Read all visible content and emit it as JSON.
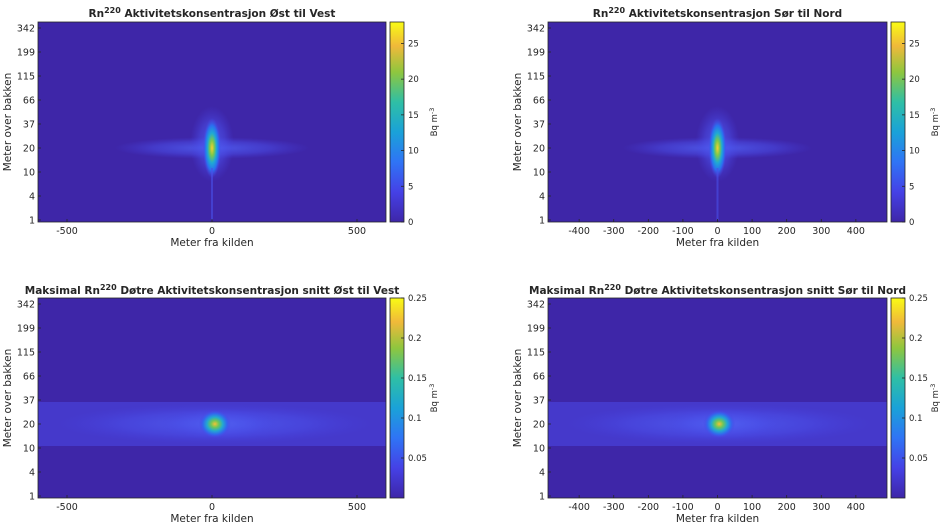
{
  "chart_data": [
    {
      "type": "heatmap",
      "title": {
        "base": "Rn",
        "sup": "220",
        "rest": " Aktivitetskonsentrasjon Øst til Vest"
      },
      "xlabel": "Meter fra kilden",
      "ylabel": "Meter over bakken",
      "x_ticks": [
        -500,
        0,
        500
      ],
      "y_ticks": [
        1,
        4,
        10,
        20,
        37,
        66,
        115,
        199,
        342
      ],
      "xlim": [
        -600,
        600
      ],
      "colorbar": {
        "label_base": "Bq m",
        "label_sup": "-3",
        "ticks": [
          0,
          5,
          10,
          15,
          20,
          25
        ],
        "min": 0,
        "max": 28
      },
      "peak": {
        "x": 0,
        "y": 20,
        "value": 27
      },
      "colors": {
        "background": "#3e26a8",
        "low": "#4a3fe0",
        "mid": "#2fb7c9",
        "high": "#fcd52f"
      }
    },
    {
      "type": "heatmap",
      "title": {
        "base": "Rn",
        "sup": "220",
        "rest": " Aktivitetskonsentrasjon Sør til Nord"
      },
      "xlabel": "Meter fra kilden",
      "ylabel": "Meter over bakken",
      "x_ticks": [
        -400,
        -300,
        -200,
        -100,
        0,
        100,
        200,
        300,
        400
      ],
      "y_ticks": [
        1,
        4,
        10,
        20,
        37,
        66,
        115,
        199,
        342
      ],
      "xlim": [
        -490,
        490
      ],
      "colorbar": {
        "label_base": "Bq m",
        "label_sup": "-3",
        "ticks": [
          0,
          5,
          10,
          15,
          20,
          25
        ],
        "min": 0,
        "max": 28
      },
      "peak": {
        "x": 0,
        "y": 20,
        "value": 27
      },
      "colors": {
        "background": "#3e26a8",
        "low": "#4a3fe0",
        "mid": "#2fb7c9",
        "high": "#fcd52f"
      }
    },
    {
      "type": "heatmap",
      "title": {
        "base": "Maksimal Rn",
        "sup": "220",
        "rest": " Døtre Aktivitetskonsentrasjon snitt Øst til Vest"
      },
      "xlabel": "Meter fra kilden",
      "ylabel": "Meter over bakken",
      "x_ticks": [
        -500,
        0,
        500
      ],
      "y_ticks": [
        1,
        4,
        10,
        20,
        37,
        66,
        115,
        199,
        342
      ],
      "xlim": [
        -600,
        600
      ],
      "colorbar": {
        "label_base": "Bq m",
        "label_sup": "-3",
        "ticks": [
          0.05,
          0.1,
          0.15,
          0.2,
          0.25
        ],
        "min": 0,
        "max": 0.25
      },
      "peak": {
        "x": 10,
        "y": 20,
        "value": 0.22
      },
      "colors": {
        "background": "#3e26a8",
        "low": "#4a3fe0",
        "mid": "#2fb7c9",
        "high": "#fcd52f"
      }
    },
    {
      "type": "heatmap",
      "title": {
        "base": "Maksimal Rn",
        "sup": "220",
        "rest": " Døtre Aktivitetskonsentrasjon snitt Sør til Nord"
      },
      "xlabel": "Meter fra kilden",
      "ylabel": "Meter over bakken",
      "x_ticks": [
        -400,
        -300,
        -200,
        -100,
        0,
        100,
        200,
        300,
        400
      ],
      "y_ticks": [
        1,
        4,
        10,
        20,
        37,
        66,
        115,
        199,
        342
      ],
      "xlim": [
        -490,
        490
      ],
      "colorbar": {
        "label_base": "Bq m",
        "label_sup": "-3",
        "ticks": [
          0.05,
          0.1,
          0.15,
          0.2,
          0.25
        ],
        "min": 0,
        "max": 0.25
      },
      "peak": {
        "x": 5,
        "y": 20,
        "value": 0.22
      },
      "colors": {
        "background": "#3e26a8",
        "low": "#4a3fe0",
        "mid": "#2fb7c9",
        "high": "#fcd52f"
      }
    }
  ]
}
